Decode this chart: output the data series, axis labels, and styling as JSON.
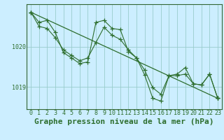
{
  "background_color": "#cceeff",
  "grid_color": "#99cccc",
  "line_color": "#2d6e2d",
  "spine_color": "#336633",
  "title": "Graphe pression niveau de la mer (hPa)",
  "xlim": [
    -0.5,
    23.5
  ],
  "ylim": [
    1018.45,
    1021.05
  ],
  "yticks": [
    1019,
    1020
  ],
  "xticks": [
    0,
    1,
    2,
    3,
    4,
    5,
    6,
    7,
    8,
    9,
    10,
    11,
    12,
    13,
    14,
    15,
    16,
    17,
    18,
    19,
    20,
    21,
    22,
    23
  ],
  "series1_x": [
    0,
    1,
    2,
    3,
    4,
    5,
    6,
    7,
    8,
    9,
    10,
    11,
    12,
    13,
    14,
    15,
    16,
    17,
    18,
    19,
    20,
    21,
    22,
    23
  ],
  "series1_y": [
    1020.85,
    1020.6,
    1020.65,
    1020.35,
    1019.85,
    1019.72,
    1019.58,
    1019.62,
    1020.6,
    1020.65,
    1020.45,
    1020.42,
    1019.88,
    1019.72,
    1019.3,
    1018.72,
    1018.65,
    1019.28,
    1019.32,
    1019.48,
    1019.08,
    1019.05,
    1019.32,
    1018.72
  ],
  "series2_x": [
    0,
    1,
    2,
    3,
    4,
    5,
    6,
    7,
    8,
    9,
    10,
    11,
    12,
    13,
    14,
    15,
    16,
    17,
    18,
    19,
    20,
    21,
    22,
    23
  ],
  "series2_y": [
    1020.85,
    1020.5,
    1020.45,
    1020.22,
    1019.92,
    1019.78,
    1019.65,
    1019.72,
    1020.1,
    1020.48,
    1020.28,
    1020.18,
    1019.92,
    1019.72,
    1019.42,
    1018.98,
    1018.82,
    1019.28,
    1019.28,
    1019.32,
    1019.08,
    1019.05,
    1019.32,
    1018.72
  ],
  "series3_x": [
    0,
    23
  ],
  "series3_y": [
    1020.85,
    1018.72
  ],
  "title_fontsize": 8,
  "tick_fontsize": 6,
  "figwidth": 3.2,
  "figheight": 2.0,
  "dpi": 100
}
